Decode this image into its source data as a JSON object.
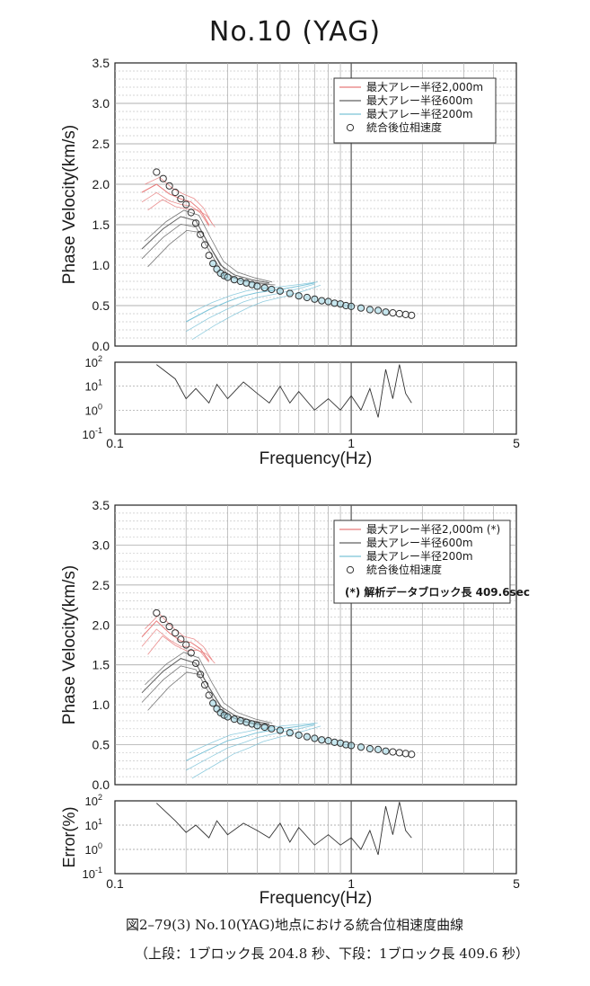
{
  "title": "No.10 (YAG)",
  "chart_data": [
    {
      "type": "scatter",
      "title": "",
      "xlabel": "Frequency(Hz)",
      "ylabel": "Phase Velocity(km/s)",
      "x_scale": "log",
      "xlim": [
        0.1,
        5
      ],
      "ylim": [
        0,
        3.5
      ],
      "x_ticks": [
        "0.1",
        "1",
        "5"
      ],
      "y_ticks": [
        "0.0",
        "0.5",
        "1.0",
        "1.5",
        "2.0",
        "2.5",
        "3.0",
        "3.5"
      ],
      "grid": true,
      "legend_position": "top-right",
      "legend": [
        {
          "label": "最大アレー半径2,000m",
          "color": "#e87b7b",
          "type": "line"
        },
        {
          "label": "最大アレー半径600m",
          "color": "#606060",
          "type": "line"
        },
        {
          "label": "最大アレー半径200m",
          "color": "#7cc3d8",
          "type": "line"
        },
        {
          "label": "統合後位相速度",
          "color": "#333333",
          "type": "marker"
        }
      ],
      "note": "",
      "series": [
        {
          "name": "統合後位相速度",
          "x": [
            0.15,
            0.16,
            0.17,
            0.18,
            0.19,
            0.2,
            0.21,
            0.22,
            0.23,
            0.24,
            0.25,
            0.26,
            0.27,
            0.28,
            0.29,
            0.3,
            0.32,
            0.34,
            0.36,
            0.38,
            0.4,
            0.43,
            0.46,
            0.5,
            0.55,
            0.6,
            0.65,
            0.7,
            0.75,
            0.8,
            0.85,
            0.9,
            0.95,
            1.0,
            1.1,
            1.2,
            1.3,
            1.4,
            1.5,
            1.6,
            1.7,
            1.8
          ],
          "y": [
            2.15,
            2.07,
            1.98,
            1.9,
            1.82,
            1.75,
            1.65,
            1.52,
            1.38,
            1.25,
            1.12,
            1.02,
            0.95,
            0.9,
            0.87,
            0.85,
            0.82,
            0.8,
            0.78,
            0.76,
            0.74,
            0.72,
            0.7,
            0.68,
            0.65,
            0.62,
            0.6,
            0.58,
            0.56,
            0.55,
            0.53,
            0.52,
            0.5,
            0.49,
            0.47,
            0.45,
            0.44,
            0.42,
            0.41,
            0.4,
            0.39,
            0.38
          ]
        },
        {
          "name": "最大アレー半径2,000m",
          "x": [
            0.13,
            0.15,
            0.17,
            0.19,
            0.21,
            0.23,
            0.25
          ],
          "y": [
            1.9,
            2.0,
            1.88,
            1.82,
            1.78,
            1.68,
            1.5
          ]
        },
        {
          "name": "最大アレー半径600m",
          "x": [
            0.13,
            0.16,
            0.19,
            0.22,
            0.25,
            0.28,
            0.32,
            0.38,
            0.45
          ],
          "y": [
            1.2,
            1.45,
            1.6,
            1.55,
            1.25,
            1.0,
            0.88,
            0.82,
            0.78
          ]
        },
        {
          "name": "最大アレー半径200m",
          "x": [
            0.2,
            0.25,
            0.3,
            0.35,
            0.4,
            0.5,
            0.6,
            0.7
          ],
          "y": [
            0.3,
            0.45,
            0.55,
            0.62,
            0.66,
            0.7,
            0.74,
            0.78
          ]
        }
      ]
    },
    {
      "type": "line",
      "title": "",
      "xlabel": "Frequency(Hz)",
      "ylabel": "",
      "x_scale": "log",
      "y_scale": "log",
      "xlim": [
        0.1,
        5
      ],
      "ylim": [
        0.1,
        100
      ],
      "y_ticks": [
        "10^-1",
        "10^0",
        "10^1",
        "10^2"
      ],
      "series": [
        {
          "name": "",
          "x": [
            0.15,
            0.18,
            0.2,
            0.22,
            0.25,
            0.27,
            0.3,
            0.35,
            0.4,
            0.45,
            0.5,
            0.55,
            0.6,
            0.7,
            0.8,
            0.9,
            1.0,
            1.1,
            1.2,
            1.3,
            1.4,
            1.5,
            1.6,
            1.7,
            1.8
          ],
          "y": [
            80,
            20,
            3,
            8,
            2,
            12,
            3,
            15,
            5,
            2,
            10,
            2,
            6,
            1,
            3,
            1,
            4,
            1,
            8,
            0.5,
            50,
            3,
            80,
            5,
            2
          ]
        }
      ]
    },
    {
      "type": "scatter",
      "title": "",
      "xlabel": "Frequency(Hz)",
      "ylabel": "Phase Velocity(km/s)",
      "x_scale": "log",
      "xlim": [
        0.1,
        5
      ],
      "ylim": [
        0,
        3.5
      ],
      "x_ticks": [
        "0.1",
        "1",
        "5"
      ],
      "y_ticks": [
        "0.0",
        "0.5",
        "1.0",
        "1.5",
        "2.0",
        "2.5",
        "3.0",
        "3.5"
      ],
      "grid": true,
      "legend_position": "top-right",
      "legend": [
        {
          "label": "最大アレー半径2,000m (*)",
          "color": "#e87b7b",
          "type": "line"
        },
        {
          "label": "最大アレー半径600m",
          "color": "#606060",
          "type": "line"
        },
        {
          "label": "最大アレー半径200m",
          "color": "#7cc3d8",
          "type": "line"
        },
        {
          "label": "統合後位相速度",
          "color": "#333333",
          "type": "marker"
        }
      ],
      "note": "(*) 解析データブロック長 409.6sec",
      "series": [
        {
          "name": "統合後位相速度",
          "x": [
            0.15,
            0.16,
            0.17,
            0.18,
            0.19,
            0.2,
            0.21,
            0.22,
            0.23,
            0.24,
            0.25,
            0.26,
            0.27,
            0.28,
            0.29,
            0.3,
            0.32,
            0.34,
            0.36,
            0.38,
            0.4,
            0.43,
            0.46,
            0.5,
            0.55,
            0.6,
            0.65,
            0.7,
            0.75,
            0.8,
            0.85,
            0.9,
            0.95,
            1.0,
            1.1,
            1.2,
            1.3,
            1.4,
            1.5,
            1.6,
            1.7,
            1.8
          ],
          "y": [
            2.15,
            2.07,
            1.98,
            1.9,
            1.82,
            1.75,
            1.65,
            1.52,
            1.38,
            1.25,
            1.12,
            1.02,
            0.95,
            0.9,
            0.87,
            0.85,
            0.82,
            0.8,
            0.78,
            0.76,
            0.74,
            0.72,
            0.7,
            0.68,
            0.65,
            0.62,
            0.6,
            0.58,
            0.56,
            0.55,
            0.53,
            0.52,
            0.5,
            0.49,
            0.47,
            0.45,
            0.44,
            0.42,
            0.41,
            0.4,
            0.39,
            0.38
          ]
        },
        {
          "name": "最大アレー半径2,000m (*)",
          "x": [
            0.13,
            0.15,
            0.17,
            0.19,
            0.21,
            0.23,
            0.25
          ],
          "y": [
            1.85,
            2.05,
            1.9,
            1.8,
            1.78,
            1.7,
            1.55
          ]
        },
        {
          "name": "最大アレー半径600m",
          "x": [
            0.13,
            0.16,
            0.19,
            0.22,
            0.25,
            0.28,
            0.32,
            0.38,
            0.45
          ],
          "y": [
            1.15,
            1.42,
            1.58,
            1.52,
            1.22,
            0.98,
            0.87,
            0.8,
            0.76
          ]
        },
        {
          "name": "最大アレー半径200m",
          "x": [
            0.2,
            0.25,
            0.3,
            0.35,
            0.4,
            0.5,
            0.6,
            0.7
          ],
          "y": [
            0.3,
            0.44,
            0.55,
            0.6,
            0.65,
            0.7,
            0.73,
            0.76
          ]
        }
      ]
    },
    {
      "type": "line",
      "title": "",
      "xlabel": "Frequency(Hz)",
      "ylabel": "Error(%)",
      "x_scale": "log",
      "y_scale": "log",
      "xlim": [
        0.1,
        5
      ],
      "ylim": [
        0.1,
        100
      ],
      "y_ticks": [
        "10^-1",
        "10^0",
        "10^1",
        "10^2"
      ],
      "series": [
        {
          "name": "",
          "x": [
            0.15,
            0.18,
            0.2,
            0.22,
            0.25,
            0.27,
            0.3,
            0.35,
            0.4,
            0.45,
            0.5,
            0.55,
            0.6,
            0.7,
            0.8,
            0.9,
            1.0,
            1.1,
            1.2,
            1.3,
            1.4,
            1.5,
            1.6,
            1.7,
            1.8
          ],
          "y": [
            80,
            15,
            5,
            10,
            3,
            15,
            4,
            12,
            6,
            3,
            12,
            2,
            8,
            1.5,
            4,
            1.5,
            3,
            1,
            6,
            0.6,
            60,
            4,
            90,
            6,
            3
          ]
        }
      ]
    }
  ],
  "caption": {
    "line1": "図2–79(3) No.10(YAG)地点における統合位相速度曲線",
    "line2": "（上段：1ブロック長 204.8 秒、下段：1ブロック長 409.6 秒）"
  }
}
